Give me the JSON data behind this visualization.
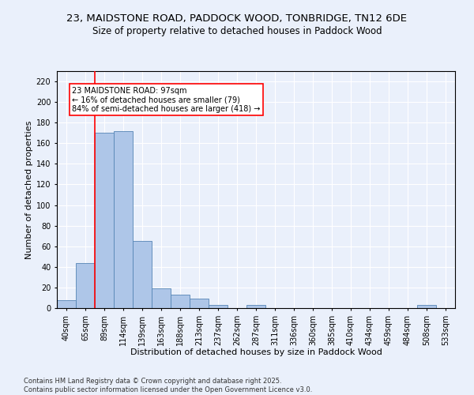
{
  "title1": "23, MAIDSTONE ROAD, PADDOCK WOOD, TONBRIDGE, TN12 6DE",
  "title2": "Size of property relative to detached houses in Paddock Wood",
  "xlabel": "Distribution of detached houses by size in Paddock Wood",
  "ylabel": "Number of detached properties",
  "bin_labels": [
    "40sqm",
    "65sqm",
    "89sqm",
    "114sqm",
    "139sqm",
    "163sqm",
    "188sqm",
    "213sqm",
    "237sqm",
    "262sqm",
    "287sqm",
    "311sqm",
    "336sqm",
    "360sqm",
    "385sqm",
    "410sqm",
    "434sqm",
    "459sqm",
    "484sqm",
    "508sqm",
    "533sqm"
  ],
  "bar_values": [
    8,
    44,
    170,
    172,
    65,
    19,
    13,
    9,
    3,
    0,
    3,
    0,
    0,
    0,
    0,
    0,
    0,
    0,
    0,
    3,
    0
  ],
  "bar_color": "#aec6e8",
  "bar_edge_color": "#5585b5",
  "vline_color": "red",
  "vline_x_index": 2,
  "annotation_text": "23 MAIDSTONE ROAD: 97sqm\n← 16% of detached houses are smaller (79)\n84% of semi-detached houses are larger (418) →",
  "annotation_box_color": "white",
  "annotation_box_edge": "red",
  "ylim": [
    0,
    230
  ],
  "yticks": [
    0,
    20,
    40,
    60,
    80,
    100,
    120,
    140,
    160,
    180,
    200,
    220
  ],
  "bg_color": "#eaf0fb",
  "grid_color": "white",
  "footer_text": "Contains HM Land Registry data © Crown copyright and database right 2025.\nContains public sector information licensed under the Open Government Licence v3.0.",
  "title1_fontsize": 9.5,
  "title2_fontsize": 8.5,
  "xlabel_fontsize": 8,
  "ylabel_fontsize": 8,
  "tick_fontsize": 7,
  "annotation_fontsize": 7,
  "footer_fontsize": 6
}
